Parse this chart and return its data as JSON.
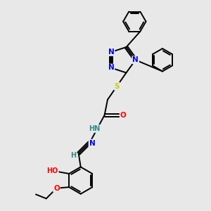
{
  "bg_color": "#e8e8e8",
  "atom_colors": {
    "N": "#0000ee",
    "O": "#ff0000",
    "S": "#cccc00",
    "C": "#000000",
    "H": "#2e8b8b"
  },
  "bond_color": "#000000"
}
